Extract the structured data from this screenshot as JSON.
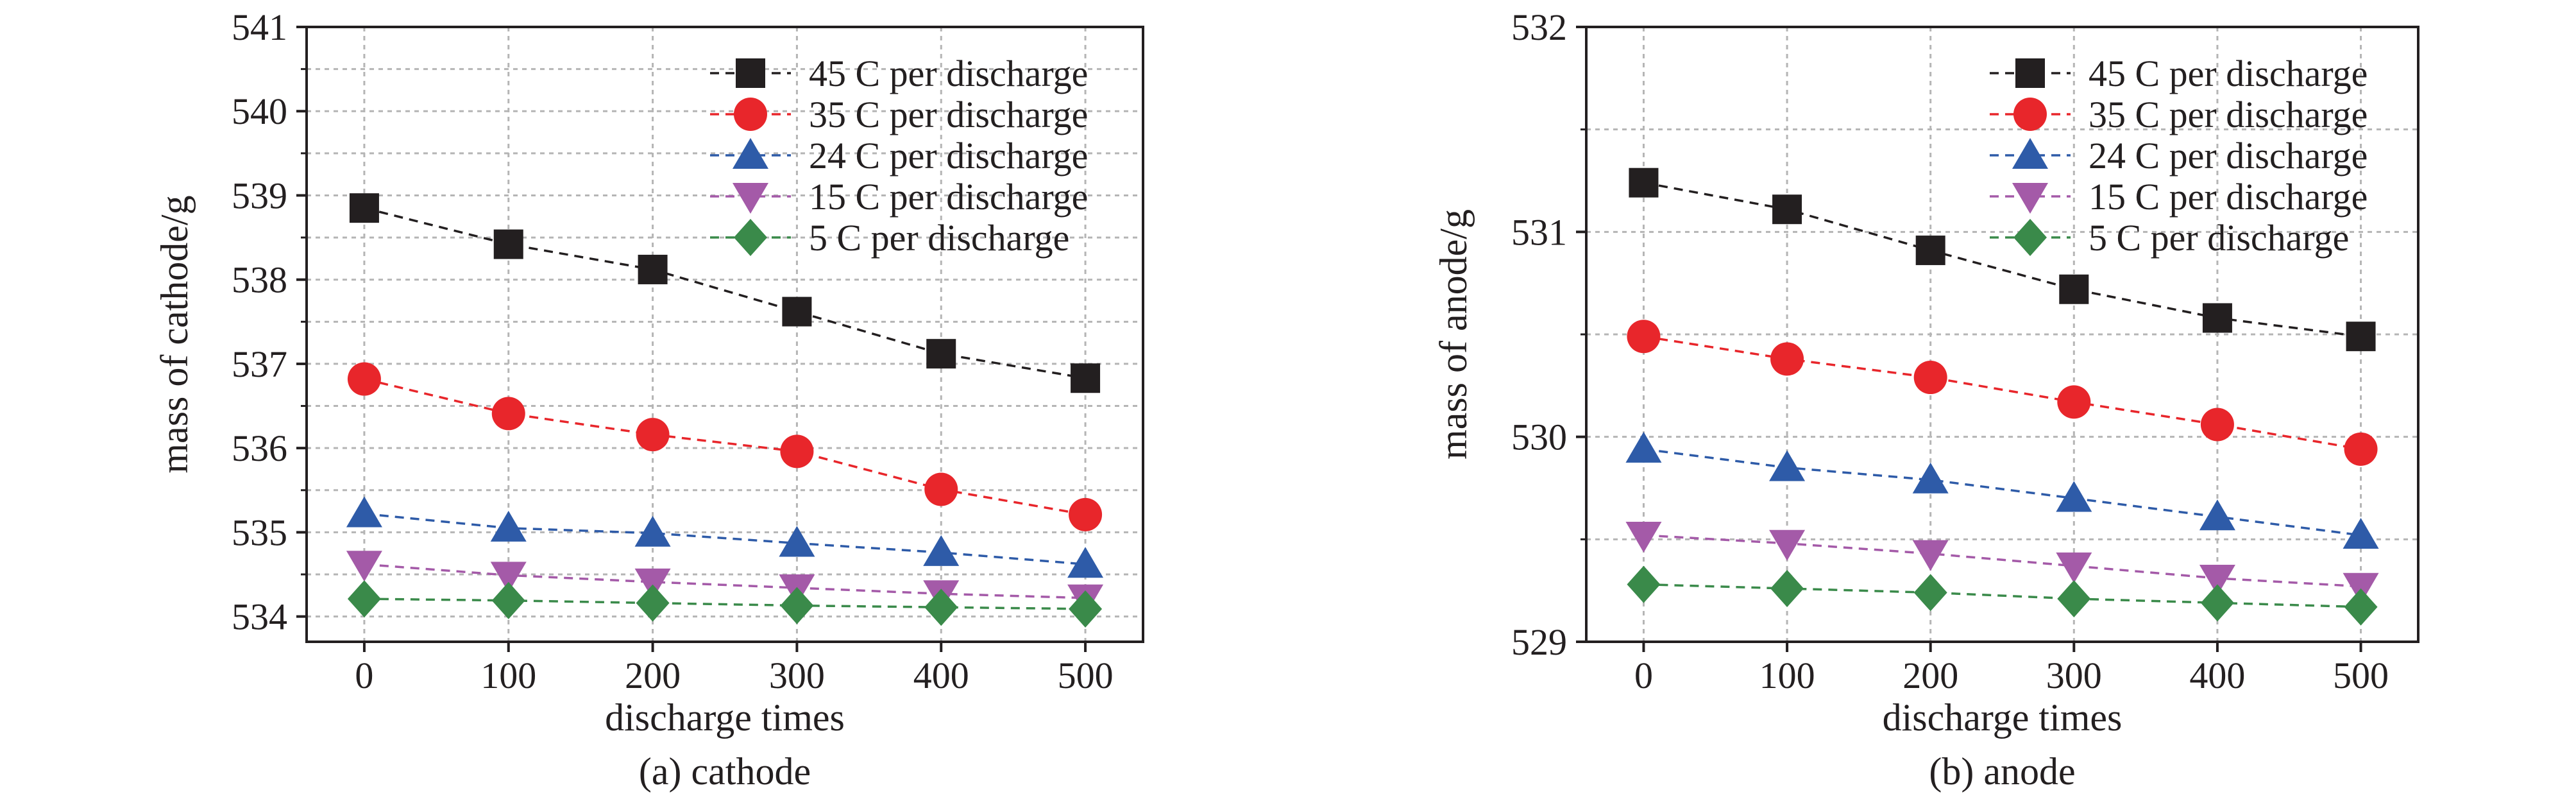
{
  "chart_data": [
    {
      "type": "line",
      "caption": "(a) cathode",
      "xlabel": "discharge times",
      "ylabel": "mass of cathode/g",
      "x": [
        0,
        100,
        200,
        300,
        400,
        500
      ],
      "xticks": [
        "0",
        "100",
        "200",
        "300",
        "400",
        "500"
      ],
      "yticks": [
        "534",
        "535",
        "536",
        "537",
        "538",
        "539",
        "540",
        "541"
      ],
      "xlim": [
        -40,
        540
      ],
      "ylim": [
        533.7,
        541
      ],
      "grid": true,
      "legend_position": "top-right",
      "series": [
        {
          "name": "45 C per discharge",
          "marker": "square",
          "color": "#231f20",
          "values": [
            538.85,
            538.42,
            538.12,
            537.62,
            537.12,
            536.83
          ]
        },
        {
          "name": "35 C per discharge",
          "marker": "circle",
          "color": "#e8262b",
          "values": [
            536.82,
            536.41,
            536.16,
            535.96,
            535.51,
            535.21
          ]
        },
        {
          "name": "24 C per discharge",
          "marker": "triangle-up",
          "color": "#2e5ba8",
          "values": [
            535.22,
            535.05,
            534.99,
            534.87,
            534.76,
            534.62
          ]
        },
        {
          "name": "15 C per discharge",
          "marker": "triangle-down",
          "color": "#a45aa8",
          "values": [
            534.62,
            534.49,
            534.41,
            534.34,
            534.27,
            534.22
          ]
        },
        {
          "name": "5 C per discharge",
          "marker": "diamond",
          "color": "#3a8a4a",
          "values": [
            534.21,
            534.19,
            534.16,
            534.13,
            534.11,
            534.09
          ]
        }
      ]
    },
    {
      "type": "line",
      "caption": "(b) anode",
      "xlabel": "discharge times",
      "ylabel": "mass of anode/g",
      "x": [
        0,
        100,
        200,
        300,
        400,
        500
      ],
      "xticks": [
        "0",
        "100",
        "200",
        "300",
        "400",
        "500"
      ],
      "yticks": [
        "529",
        "530",
        "531",
        "532"
      ],
      "xlim": [
        -40,
        540
      ],
      "ylim": [
        529,
        532
      ],
      "grid": true,
      "legend_position": "top-right",
      "series": [
        {
          "name": "45 C per discharge",
          "marker": "square",
          "color": "#231f20",
          "values": [
            531.24,
            531.11,
            530.91,
            530.72,
            530.58,
            530.49
          ]
        },
        {
          "name": "35 C per discharge",
          "marker": "circle",
          "color": "#e8262b",
          "values": [
            530.49,
            530.38,
            530.29,
            530.17,
            530.06,
            529.94
          ]
        },
        {
          "name": "24 C per discharge",
          "marker": "triangle-up",
          "color": "#2e5ba8",
          "values": [
            529.94,
            529.85,
            529.79,
            529.7,
            529.61,
            529.52
          ]
        },
        {
          "name": "15 C per discharge",
          "marker": "triangle-down",
          "color": "#a45aa8",
          "values": [
            529.52,
            529.48,
            529.43,
            529.37,
            529.31,
            529.27
          ]
        },
        {
          "name": "5 C per discharge",
          "marker": "diamond",
          "color": "#3a8a4a",
          "values": [
            529.28,
            529.26,
            529.24,
            529.21,
            529.19,
            529.17
          ]
        }
      ]
    }
  ]
}
